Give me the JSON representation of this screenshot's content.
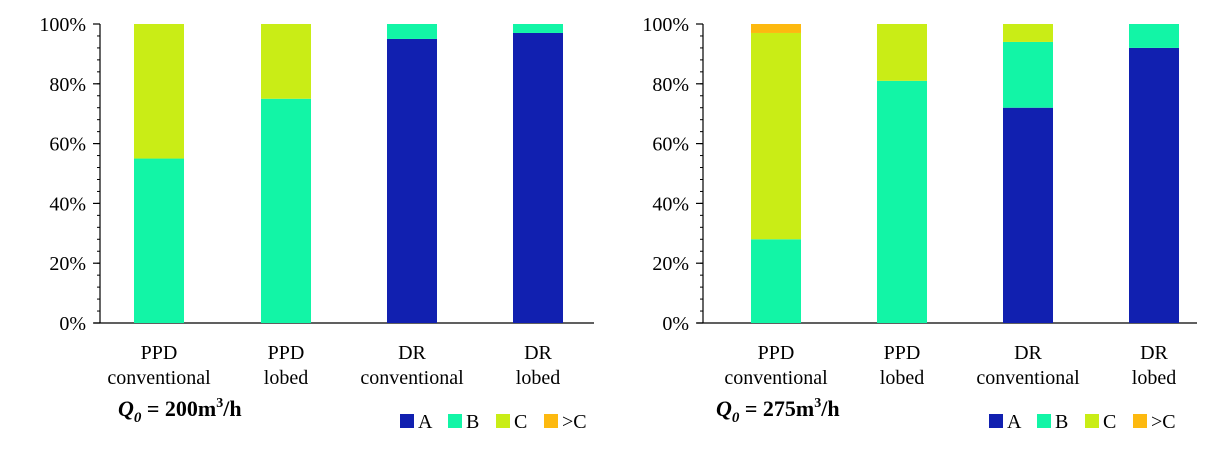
{
  "colors": {
    "A": "#1120B0",
    "B": "#12F5A6",
    "C": "#C9ED16",
    "gtC": "#FDB90F",
    "axis": "#000000"
  },
  "chart_data": [
    {
      "type": "bar",
      "stacked": true,
      "caption": {
        "q": "Q",
        "sub": "0",
        "value": " = 200m",
        "sup": "3",
        "unit": "/h"
      },
      "categories": [
        [
          "PPD",
          "conventional"
        ],
        [
          "PPD",
          "lobed"
        ],
        [
          "DR",
          "conventional"
        ],
        [
          "DR",
          "lobed"
        ]
      ],
      "yticks": [
        "0%",
        "20%",
        "40%",
        "60%",
        "80%",
        "100%"
      ],
      "ylim": [
        0,
        100
      ],
      "legend_position": "bottom-right",
      "series": [
        {
          "name": "A",
          "values": [
            0,
            0,
            95,
            97
          ]
        },
        {
          "name": "B",
          "values": [
            55,
            75,
            5,
            3
          ]
        },
        {
          "name": "C",
          "values": [
            45,
            25,
            0,
            0
          ]
        },
        {
          "name": ">C",
          "values": [
            0,
            0,
            0,
            0
          ]
        }
      ]
    },
    {
      "type": "bar",
      "stacked": true,
      "caption": {
        "q": "Q",
        "sub": "0",
        "value": " = 275m",
        "sup": "3",
        "unit": "/h"
      },
      "categories": [
        [
          "PPD",
          "conventional"
        ],
        [
          "PPD",
          "lobed"
        ],
        [
          "DR",
          "conventional"
        ],
        [
          "DR",
          "lobed"
        ]
      ],
      "yticks": [
        "0%",
        "20%",
        "40%",
        "60%",
        "80%",
        "100%"
      ],
      "ylim": [
        0,
        100
      ],
      "legend_position": "bottom-right",
      "series": [
        {
          "name": "A",
          "values": [
            0,
            0,
            72,
            92
          ]
        },
        {
          "name": "B",
          "values": [
            28,
            81,
            22,
            8
          ]
        },
        {
          "name": "C",
          "values": [
            69,
            19,
            6,
            0
          ]
        },
        {
          "name": ">C",
          "values": [
            3,
            0,
            0,
            0
          ]
        }
      ]
    }
  ]
}
